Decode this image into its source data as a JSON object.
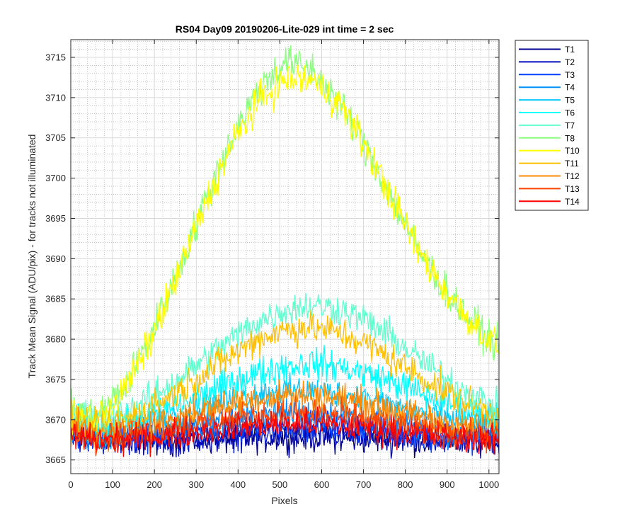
{
  "chart_data": {
    "type": "line",
    "title": "RS04 Day09 20190206-Lite-029 int time = 2 sec",
    "xlabel": "Pixels",
    "ylabel": "Track Mean Signal (ADU/pix) - for tracks not illuminated",
    "xlim": [
      0,
      1024
    ],
    "ylim": [
      3663.3,
      3717.2
    ],
    "xticks": [
      0,
      100,
      200,
      300,
      400,
      500,
      600,
      700,
      800,
      900,
      1000
    ],
    "yticks": [
      3665,
      3670,
      3675,
      3680,
      3685,
      3690,
      3695,
      3700,
      3705,
      3710,
      3715
    ],
    "grid": true,
    "minor_grid": true,
    "legend_position": "outside-right",
    "x": [
      0,
      64,
      128,
      192,
      256,
      320,
      384,
      448,
      512,
      576,
      640,
      704,
      768,
      832,
      896,
      960,
      1024
    ],
    "series": [
      {
        "name": "T1",
        "color": "#000090",
        "noise": 0.9,
        "values": [
          3668.0,
          3667.6,
          3667.5,
          3667.4,
          3667.4,
          3667.5,
          3667.6,
          3667.7,
          3667.8,
          3667.8,
          3667.7,
          3667.6,
          3667.5,
          3667.4,
          3667.4,
          3667.5,
          3667.6
        ]
      },
      {
        "name": "T2",
        "color": "#0010c0",
        "noise": 0.9,
        "values": [
          3668.0,
          3667.6,
          3667.5,
          3667.5,
          3667.6,
          3667.8,
          3668.0,
          3668.2,
          3668.3,
          3668.3,
          3668.2,
          3668.0,
          3667.8,
          3667.6,
          3667.5,
          3667.5,
          3667.6
        ]
      },
      {
        "name": "T3",
        "color": "#0040ff",
        "noise": 0.9,
        "values": [
          3668.2,
          3667.8,
          3667.8,
          3668.0,
          3668.3,
          3668.6,
          3669.0,
          3669.3,
          3669.5,
          3669.5,
          3669.3,
          3669.0,
          3668.6,
          3668.3,
          3668.0,
          3667.8,
          3667.8
        ]
      },
      {
        "name": "T4",
        "color": "#0090ff",
        "noise": 0.9,
        "values": [
          3668.5,
          3668.0,
          3668.2,
          3668.5,
          3669.0,
          3669.5,
          3670.0,
          3670.5,
          3670.8,
          3670.8,
          3670.6,
          3670.1,
          3669.6,
          3669.1,
          3668.6,
          3668.3,
          3668.2
        ]
      },
      {
        "name": "T5",
        "color": "#00c8ff",
        "noise": 0.9,
        "values": [
          3669.5,
          3668.5,
          3669.0,
          3669.8,
          3670.7,
          3671.6,
          3672.5,
          3673.2,
          3673.6,
          3673.6,
          3673.2,
          3672.6,
          3671.8,
          3671.0,
          3670.3,
          3669.7,
          3669.5
        ]
      },
      {
        "name": "T6",
        "color": "#00ffff",
        "noise": 1.0,
        "values": [
          3670.0,
          3669.0,
          3669.5,
          3670.5,
          3671.8,
          3673.2,
          3674.6,
          3675.8,
          3676.6,
          3677.0,
          3676.6,
          3675.8,
          3674.7,
          3673.4,
          3672.2,
          3671.2,
          3670.5
        ]
      },
      {
        "name": "T7",
        "color": "#60ffd0",
        "noise": 1.0,
        "values": [
          3671.0,
          3670.0,
          3671.0,
          3672.6,
          3675.0,
          3677.5,
          3680.0,
          3682.2,
          3683.6,
          3684.2,
          3683.8,
          3682.4,
          3680.2,
          3677.6,
          3675.2,
          3673.0,
          3671.5
        ]
      },
      {
        "name": "T8",
        "color": "#8cff80",
        "noise": 1.1,
        "values": [
          3671.0,
          3670.5,
          3674.0,
          3680.5,
          3688.5,
          3697.0,
          3705.0,
          3711.0,
          3714.5,
          3713.5,
          3709.5,
          3704.0,
          3697.5,
          3691.0,
          3686.0,
          3682.0,
          3679.0
        ]
      },
      {
        "name": "T10",
        "color": "#ffff00",
        "noise": 1.1,
        "values": [
          3670.5,
          3670.0,
          3673.5,
          3680.0,
          3688.0,
          3696.5,
          3704.0,
          3709.5,
          3712.2,
          3712.2,
          3709.5,
          3704.0,
          3697.5,
          3691.0,
          3686.0,
          3682.0,
          3679.0
        ]
      },
      {
        "name": "T11",
        "color": "#ffc000",
        "noise": 1.0,
        "values": [
          3670.0,
          3669.0,
          3670.0,
          3671.5,
          3673.5,
          3675.8,
          3678.0,
          3680.0,
          3681.2,
          3681.5,
          3680.8,
          3679.5,
          3677.5,
          3675.5,
          3673.5,
          3671.8,
          3670.8
        ]
      },
      {
        "name": "T12",
        "color": "#ff8800",
        "noise": 1.0,
        "values": [
          3669.0,
          3668.0,
          3668.5,
          3669.3,
          3670.3,
          3671.2,
          3672.0,
          3672.7,
          3673.0,
          3673.0,
          3672.6,
          3672.0,
          3671.2,
          3670.3,
          3669.6,
          3669.0,
          3668.8
        ]
      },
      {
        "name": "T13",
        "color": "#ff4400",
        "noise": 0.9,
        "values": [
          3668.5,
          3667.8,
          3668.0,
          3668.5,
          3669.0,
          3669.6,
          3670.1,
          3670.5,
          3670.8,
          3670.8,
          3670.5,
          3670.0,
          3669.4,
          3668.8,
          3668.4,
          3668.1,
          3668.0
        ]
      },
      {
        "name": "T14",
        "color": "#ff0000",
        "noise": 0.9,
        "values": [
          3668.0,
          3667.5,
          3667.5,
          3667.8,
          3668.2,
          3668.6,
          3669.0,
          3669.3,
          3669.5,
          3669.5,
          3669.3,
          3669.0,
          3668.6,
          3668.2,
          3667.9,
          3667.6,
          3667.5
        ]
      }
    ]
  }
}
